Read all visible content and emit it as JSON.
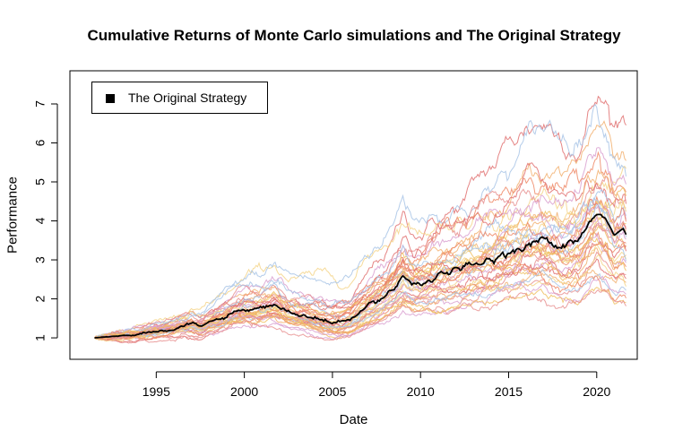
{
  "chart_data": {
    "type": "line",
    "title": "Cumulative Returns of Monte Carlo simulations and The Original Strategy",
    "xlabel": "Date",
    "ylabel": "Performance",
    "xlim": [
      1990.1,
      2022.3
    ],
    "ylim": [
      0.45,
      7.85
    ],
    "x_ticks": [
      1995,
      2000,
      2005,
      2010,
      2015,
      2020
    ],
    "y_ticks": [
      1,
      2,
      3,
      4,
      5,
      6,
      7
    ],
    "x_tick_labels": [
      "1995",
      "2000",
      "2005",
      "2010",
      "2015",
      "2020"
    ],
    "y_tick_labels": [
      "1",
      "2",
      "3",
      "4",
      "5",
      "6",
      "7"
    ],
    "grid": false,
    "legend_position": "top-left",
    "legend": [
      "The Original Strategy"
    ],
    "original_strategy": {
      "name": "The Original Strategy",
      "color": "#000000",
      "x": [
        1991.5,
        1992,
        1993,
        1994,
        1995,
        1996,
        1997,
        1997.5,
        1998,
        1999,
        2000,
        2001,
        2001.7,
        2002.5,
        2003,
        2004,
        2005,
        2006,
        2007,
        2008,
        2008.5,
        2009,
        2009.5,
        2010,
        2011,
        2012,
        2013,
        2014,
        2015,
        2016,
        2017,
        2018,
        2019,
        2019.5,
        2020,
        2020.5,
        2021,
        2021.5,
        2021.7
      ],
      "values": [
        1.0,
        1.02,
        1.05,
        1.1,
        1.18,
        1.25,
        1.35,
        1.28,
        1.4,
        1.55,
        1.7,
        1.72,
        1.85,
        1.65,
        1.6,
        1.5,
        1.38,
        1.45,
        1.8,
        2.1,
        2.3,
        2.6,
        2.4,
        2.4,
        2.6,
        2.7,
        2.85,
        3.0,
        3.2,
        3.4,
        3.5,
        3.3,
        3.5,
        3.9,
        4.15,
        4.0,
        3.65,
        3.8,
        3.62
      ]
    },
    "simulations": {
      "count": 40,
      "start_x": 1991.5,
      "end_x": 2021.7,
      "start_value": 1.0,
      "final_values": [
        6.4,
        5.5,
        5.3,
        5.1,
        4.9,
        4.7,
        4.6,
        4.5,
        4.4,
        4.3,
        4.2,
        4.1,
        4.0,
        3.95,
        3.9,
        3.8,
        3.75,
        3.7,
        3.6,
        3.55,
        3.5,
        3.4,
        3.35,
        3.3,
        3.2,
        3.1,
        3.0,
        2.95,
        2.9,
        2.8,
        2.7,
        2.6,
        2.5,
        2.4,
        2.3,
        2.2,
        2.1,
        2.0,
        1.9,
        1.8
      ],
      "palette": [
        "#e07070",
        "#f2b070",
        "#f5d58a",
        "#a8c4e6",
        "#d9a0d0",
        "#ee8866",
        "#f0c060",
        "#e89090"
      ]
    }
  }
}
